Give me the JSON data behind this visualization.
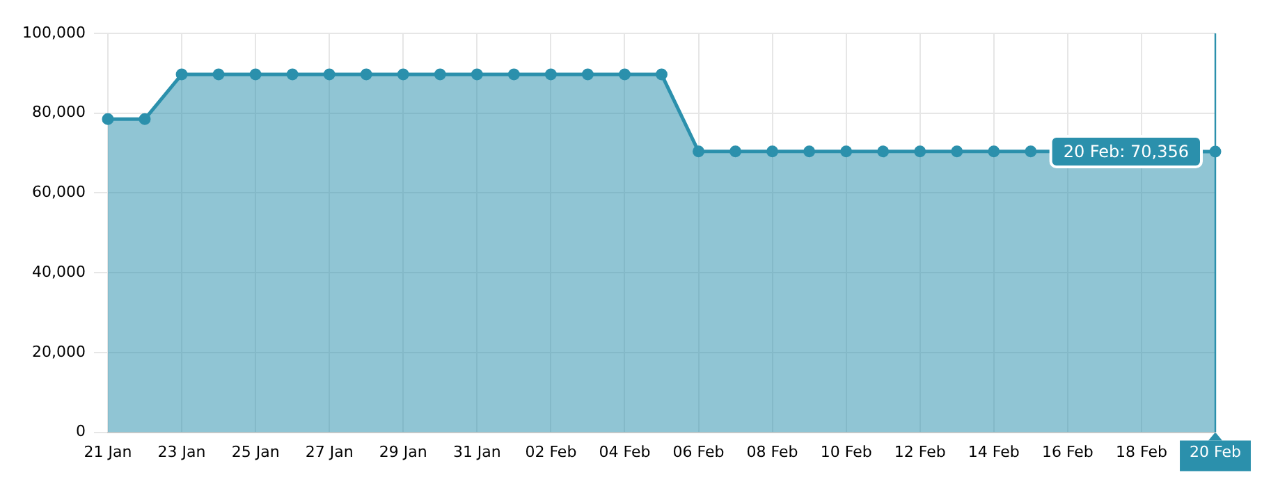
{
  "chart_data": {
    "type": "area",
    "categories": [
      "21 Jan",
      null,
      "23 Jan",
      null,
      "25 Jan",
      null,
      "27 Jan",
      null,
      "29 Jan",
      null,
      "31 Jan",
      null,
      "02 Feb",
      null,
      "04 Feb",
      null,
      "06 Feb",
      null,
      "08 Feb",
      null,
      "10 Feb",
      null,
      "12 Feb",
      null,
      "14 Feb",
      null,
      "16 Feb",
      null,
      "18 Feb",
      null,
      "20 Feb"
    ],
    "series": [
      {
        "color": "#2b90ac",
        "values": [
          78500,
          78500,
          89700,
          89700,
          89700,
          89700,
          89700,
          89700,
          89700,
          89700,
          89700,
          89700,
          89700,
          89700,
          89700,
          89700,
          70400,
          70400,
          70400,
          70400,
          70400,
          70400,
          70400,
          70400,
          70400,
          70400,
          null,
          null,
          null,
          null,
          70356
        ]
      }
    ],
    "ylim": [
      0,
      100000
    ],
    "yticks": [
      {
        "value": 0,
        "label": "0"
      },
      {
        "value": 20000,
        "label": "20,000"
      },
      {
        "value": 40000,
        "label": "40,000"
      },
      {
        "value": 60000,
        "label": "60,000"
      },
      {
        "value": 80000,
        "label": "80,000"
      },
      {
        "value": 100000,
        "label": "100,000"
      }
    ],
    "grid": true,
    "legend": false,
    "marker": "circle",
    "line_style": "solid",
    "ref_lines": [
      {
        "axis": "x",
        "value": "20 Feb",
        "color": "#2b90ac"
      }
    ],
    "annotations": [
      {
        "text": "20 Feb: 70,356",
        "x": "20 Feb",
        "y": 70356
      }
    ]
  }
}
